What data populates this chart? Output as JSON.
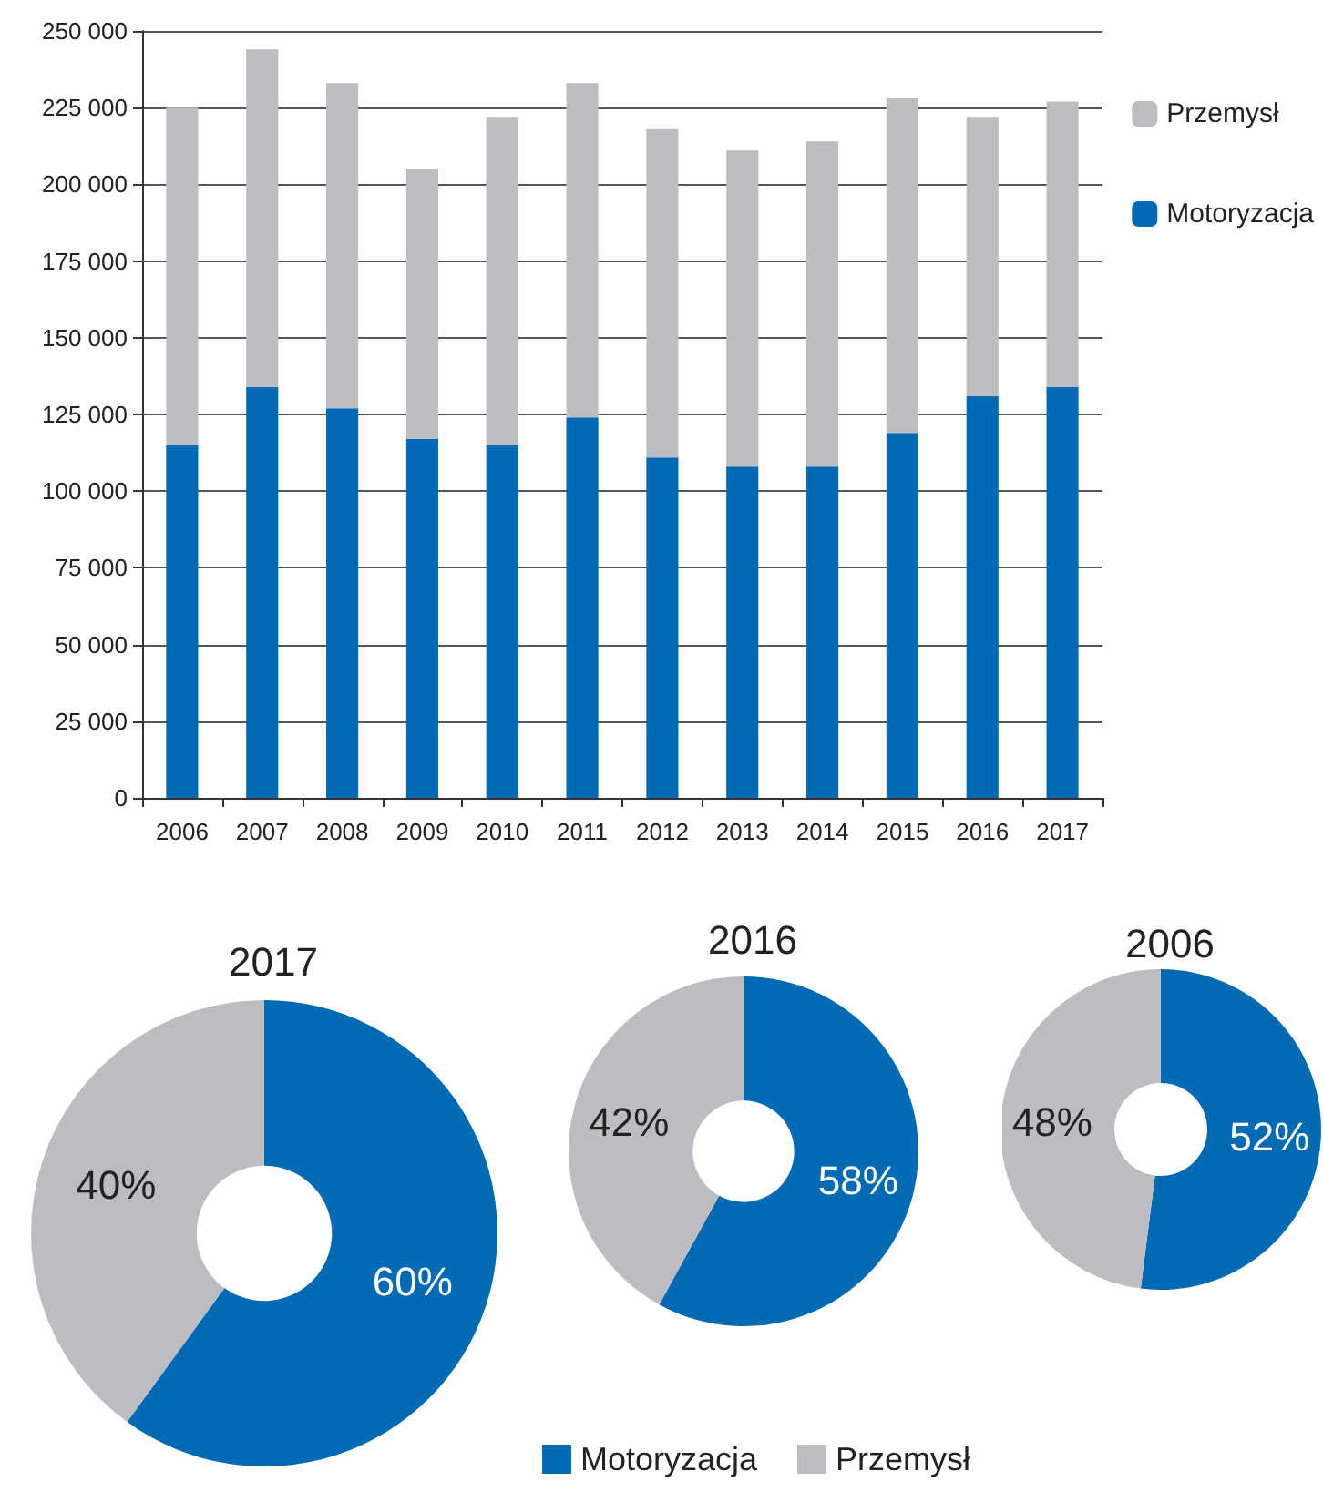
{
  "chart_data": [
    {
      "type": "bar",
      "stacked": true,
      "categories": [
        "2006",
        "2007",
        "2008",
        "2009",
        "2010",
        "2011",
        "2012",
        "2013",
        "2014",
        "2015",
        "2016",
        "2017"
      ],
      "series": [
        {
          "name": "Motoryzacja",
          "color": "#006ab5",
          "values": [
            115000,
            134000,
            127000,
            117000,
            115000,
            124000,
            111000,
            108000,
            108000,
            119000,
            131000,
            134000
          ]
        },
        {
          "name": "Przemysł",
          "color": "#bcbdc1",
          "values": [
            110000,
            110000,
            106000,
            88000,
            107000,
            109000,
            107000,
            103000,
            106000,
            109000,
            91000,
            93000
          ]
        }
      ],
      "ylim": [
        0,
        250000
      ],
      "yticks": [
        {
          "value": 0,
          "label": "0"
        },
        {
          "value": 25000,
          "label": "25 000"
        },
        {
          "value": 50000,
          "label": "50 000"
        },
        {
          "value": 75000,
          "label": "75 000"
        },
        {
          "value": 100000,
          "label": "100 000"
        },
        {
          "value": 125000,
          "label": "125 000"
        },
        {
          "value": 150000,
          "label": "150 000"
        },
        {
          "value": 175000,
          "label": "175 000"
        },
        {
          "value": 200000,
          "label": "200 000"
        },
        {
          "value": 225000,
          "label": "225 000"
        },
        {
          "value": 250000,
          "label": "250 000"
        }
      ],
      "grid": "y",
      "legend": "right"
    },
    {
      "type": "donut",
      "title": "2017",
      "values": [
        60,
        40
      ],
      "value_labels": [
        "60%",
        "40%"
      ],
      "colors": [
        "#006ab5",
        "#bcbdc1"
      ]
    },
    {
      "type": "donut",
      "title": "2016",
      "categories": [
        "Motoryzacja",
        "Przemysł"
      ],
      "values": [
        58,
        42
      ],
      "value_labels": [
        "58%",
        "42%"
      ],
      "colors": [
        "#006ab5",
        "#bcbdc1"
      ],
      "legend": "bottom"
    },
    {
      "type": "donut",
      "title": "2006",
      "values": [
        52,
        48
      ],
      "value_labels": [
        "52%",
        "48%"
      ],
      "colors": [
        "#006ab5",
        "#bcbdc1"
      ]
    }
  ]
}
